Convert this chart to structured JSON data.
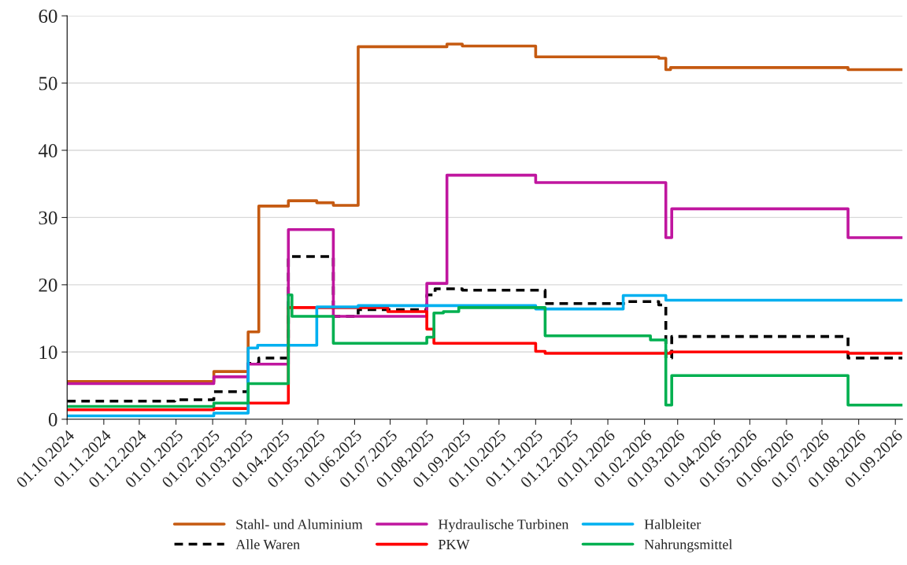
{
  "chart_data": {
    "type": "step",
    "xlim": [
      "2024-10-01",
      "2026-09-07"
    ],
    "xticks": [
      {
        "value": "2024-10-01",
        "label": "01.10.2024"
      },
      {
        "value": "2024-11-01",
        "label": "01.11.2024"
      },
      {
        "value": "2024-12-01",
        "label": "01.12.2024"
      },
      {
        "value": "2025-01-01",
        "label": "01.01.2025"
      },
      {
        "value": "2025-02-01",
        "label": "01.02.2025"
      },
      {
        "value": "2025-03-01",
        "label": "01.03.2025"
      },
      {
        "value": "2025-04-01",
        "label": "01.04.2025"
      },
      {
        "value": "2025-05-01",
        "label": "01.05.2025"
      },
      {
        "value": "2025-06-01",
        "label": "01.06.2025"
      },
      {
        "value": "2025-07-01",
        "label": "01.07.2025"
      },
      {
        "value": "2025-08-01",
        "label": "01.08.2025"
      },
      {
        "value": "2025-09-01",
        "label": "01.09.2025"
      },
      {
        "value": "2025-10-01",
        "label": "01.10.2025"
      },
      {
        "value": "2025-11-01",
        "label": "01.11.2025"
      },
      {
        "value": "2025-12-01",
        "label": "01.12.2025"
      },
      {
        "value": "2026-01-01",
        "label": "01.01.2026"
      },
      {
        "value": "2026-02-01",
        "label": "01.02.2026"
      },
      {
        "value": "2026-03-01",
        "label": "01.03.2026"
      },
      {
        "value": "2026-04-01",
        "label": "01.04.2026"
      },
      {
        "value": "2026-05-01",
        "label": "01.05.2026"
      },
      {
        "value": "2026-06-01",
        "label": "01.06.2026"
      },
      {
        "value": "2026-07-01",
        "label": "01.07.2026"
      },
      {
        "value": "2026-08-01",
        "label": "01.08.2026"
      },
      {
        "value": "2026-09-01",
        "label": "01.09.2026"
      }
    ],
    "ylim": [
      0,
      60
    ],
    "yticks": [
      0,
      10,
      20,
      30,
      40,
      50,
      60
    ],
    "grid": "y",
    "legend": "bottom",
    "series": [
      {
        "name": "Stahl- und Aluminium",
        "color": "#c55a11",
        "x": [
          "2024-10-01",
          "2025-02-02",
          "2025-03-03",
          "2025-03-12",
          "2025-04-06",
          "2025-04-30",
          "2025-05-14",
          "2025-06-04",
          "2025-08-18",
          "2025-08-31",
          "2025-11-01",
          "2026-02-13",
          "2026-02-19",
          "2026-02-23",
          "2026-07-23",
          "2026-09-07"
        ],
        "values": [
          5.6,
          7.1,
          13.0,
          31.7,
          32.5,
          32.2,
          31.8,
          55.4,
          55.8,
          55.5,
          53.9,
          53.7,
          52.0,
          52.3,
          52.0,
          52.0
        ]
      },
      {
        "name": "Alle Waren",
        "color": "#000000",
        "line_style": "dashed",
        "x": [
          "2024-10-01",
          "2024-12-31",
          "2025-02-02",
          "2025-03-03",
          "2025-03-12",
          "2025-04-06",
          "2025-05-14",
          "2025-06-04",
          "2025-08-01",
          "2025-08-08",
          "2025-08-31",
          "2025-11-09",
          "2026-01-17",
          "2026-02-13",
          "2026-02-19",
          "2026-02-24",
          "2026-07-23",
          "2026-09-07"
        ],
        "values": [
          2.7,
          2.9,
          4.1,
          8.3,
          9.1,
          24.2,
          15.3,
          16.3,
          18.5,
          19.4,
          19.2,
          17.2,
          17.5,
          17.0,
          9.1,
          12.3,
          9.1,
          9.1
        ]
      },
      {
        "name": "Hydraulische Turbinen",
        "color": "#c0169f",
        "x": [
          "2024-10-01",
          "2025-02-02",
          "2025-03-03",
          "2025-04-06",
          "2025-05-14",
          "2025-08-01",
          "2025-08-18",
          "2025-11-01",
          "2026-02-19",
          "2026-02-24",
          "2026-07-23",
          "2026-09-07"
        ],
        "values": [
          5.3,
          6.3,
          8.2,
          28.2,
          15.3,
          20.2,
          36.3,
          35.2,
          27.0,
          31.3,
          27.0,
          27.0
        ]
      },
      {
        "name": "PKW",
        "color": "#ff0000",
        "x": [
          "2024-10-01",
          "2025-02-02",
          "2025-03-03",
          "2025-04-06",
          "2025-06-29",
          "2025-08-01",
          "2025-08-07",
          "2025-11-01",
          "2025-11-09",
          "2026-02-23",
          "2026-07-23",
          "2026-09-07"
        ],
        "values": [
          1.4,
          1.6,
          2.4,
          16.6,
          16.0,
          13.4,
          11.3,
          10.1,
          9.8,
          10.0,
          9.8,
          9.8
        ]
      },
      {
        "name": "Halbleiter",
        "color": "#00b0f0",
        "x": [
          "2024-10-01",
          "2025-02-02",
          "2025-03-03",
          "2025-03-11",
          "2025-04-30",
          "2025-06-04",
          "2025-11-01",
          "2026-01-14",
          "2026-02-19",
          "2026-09-07"
        ],
        "values": [
          0.5,
          0.9,
          10.6,
          11.0,
          16.7,
          16.9,
          16.4,
          18.4,
          17.7,
          17.7
        ]
      },
      {
        "name": "Nahrungsmittel",
        "color": "#00b050",
        "x": [
          "2024-10-01",
          "2025-02-02",
          "2025-03-03",
          "2025-04-06",
          "2025-04-09",
          "2025-05-14",
          "2025-08-01",
          "2025-08-07",
          "2025-08-15",
          "2025-08-28",
          "2025-11-09",
          "2026-02-06",
          "2026-02-19",
          "2026-02-24",
          "2026-07-23",
          "2026-09-07"
        ],
        "values": [
          1.9,
          2.4,
          5.3,
          18.5,
          15.3,
          11.3,
          12.2,
          15.8,
          16.0,
          16.6,
          12.4,
          11.8,
          2.1,
          6.5,
          2.1,
          2.1
        ]
      }
    ]
  }
}
